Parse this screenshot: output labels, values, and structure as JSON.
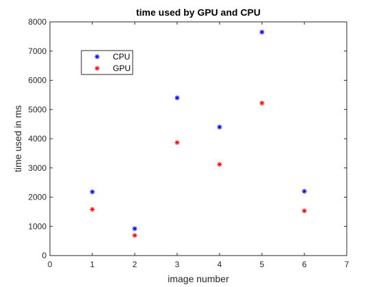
{
  "chart_data": {
    "type": "scatter",
    "title": "time used by GPU and CPU",
    "xlabel": "image number",
    "ylabel": "time used in ms",
    "xlim": [
      0,
      7
    ],
    "ylim": [
      0,
      8000
    ],
    "xticks": [
      0,
      1,
      2,
      3,
      4,
      5,
      6,
      7
    ],
    "yticks": [
      0,
      1000,
      2000,
      3000,
      4000,
      5000,
      6000,
      7000,
      8000
    ],
    "grid": false,
    "legend_position": "top-left",
    "marker": "*",
    "series": [
      {
        "name": "CPU",
        "color": "#0000ff",
        "points": [
          [
            1,
            2180
          ],
          [
            2,
            920
          ],
          [
            3,
            5400
          ],
          [
            4,
            4400
          ],
          [
            5,
            7650
          ],
          [
            6,
            2200
          ]
        ]
      },
      {
        "name": "GPU",
        "color": "#ff0000",
        "points": [
          [
            1,
            1580
          ],
          [
            2,
            690
          ],
          [
            3,
            3870
          ],
          [
            4,
            3120
          ],
          [
            5,
            5220
          ],
          [
            6,
            1530
          ]
        ]
      }
    ]
  }
}
